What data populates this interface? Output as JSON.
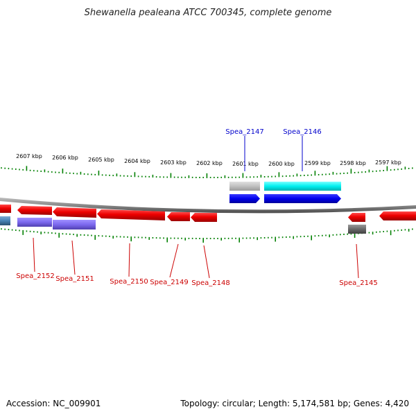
{
  "title": "Shewanella pealeana ATCC 700345, complete genome",
  "footer": {
    "accession": "Accession: NC_009901",
    "summary": "Topology: circular; Length: 5,174,581 bp; Genes: 4,420"
  },
  "tick_labels": [
    "2607 kbp",
    "2606 kbp",
    "2605 kbp",
    "2604 kbp",
    "2603 kbp",
    "2602 kbp",
    "2601 kbp",
    "2600 kbp",
    "2599 kbp",
    "2598 kbp",
    "2597 kbp"
  ],
  "genes_above": [
    {
      "name": "Spea_2147",
      "strand": "+"
    },
    {
      "name": "Spea_2146",
      "strand": "+"
    }
  ],
  "genes_below": [
    {
      "name": "Spea_2152",
      "strand": "-"
    },
    {
      "name": "Spea_2151",
      "strand": "-"
    },
    {
      "name": "Spea_2150",
      "strand": "-"
    },
    {
      "name": "Spea_2149",
      "strand": "-"
    },
    {
      "name": "Spea_2148",
      "strand": "-"
    },
    {
      "name": "Spea_2145",
      "strand": "-"
    }
  ],
  "colors": {
    "cds_minus": "#ff0000",
    "cds_plus": "#0000ff",
    "label_minus": "#cc0000",
    "label_plus": "#0000cc",
    "tick": "#008000",
    "backbone": "#808080",
    "feature_cyan": "#00ffff",
    "feature_gray": "#c0c0c0",
    "feature_purple": "#7b68ee",
    "feature_darkgray": "#696969",
    "feature_steelblue": "#4682b4"
  }
}
